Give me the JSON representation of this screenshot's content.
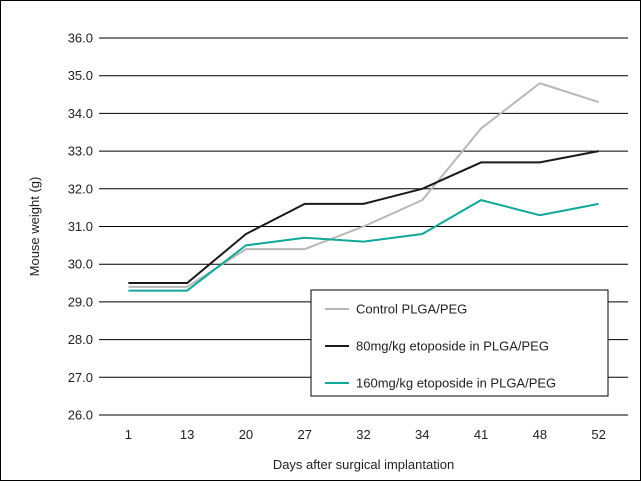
{
  "chart_data": {
    "type": "line",
    "xlabel": "Days after surgical implantation",
    "ylabel": "Mouse weight (g)",
    "categories": [
      "1",
      "13",
      "20",
      "27",
      "32",
      "34",
      "41",
      "48",
      "52"
    ],
    "ylim": [
      26.0,
      36.0
    ],
    "yticks": [
      "26.0",
      "27.0",
      "28.0",
      "29.0",
      "30.0",
      "31.0",
      "32.0",
      "33.0",
      "34.0",
      "35.0",
      "36.0"
    ],
    "grid": "horizontal",
    "legend_position": "lower-right",
    "series": [
      {
        "name": "Control PLGA/PEG",
        "color": "#b8b8b8",
        "values": [
          29.4,
          29.4,
          30.4,
          30.4,
          31.0,
          31.7,
          33.6,
          34.8,
          34.3
        ]
      },
      {
        "name": "80mg/kg etoposide in PLGA/PEG",
        "color": "#1a1a1a",
        "values": [
          29.5,
          29.5,
          30.8,
          31.6,
          31.6,
          32.0,
          32.7,
          32.7,
          33.0
        ]
      },
      {
        "name": "160mg/kg etoposide in PLGA/PEG",
        "color": "#12a89a",
        "values": [
          29.3,
          29.3,
          30.5,
          30.7,
          30.6,
          30.8,
          31.7,
          31.3,
          31.6
        ]
      }
    ]
  }
}
